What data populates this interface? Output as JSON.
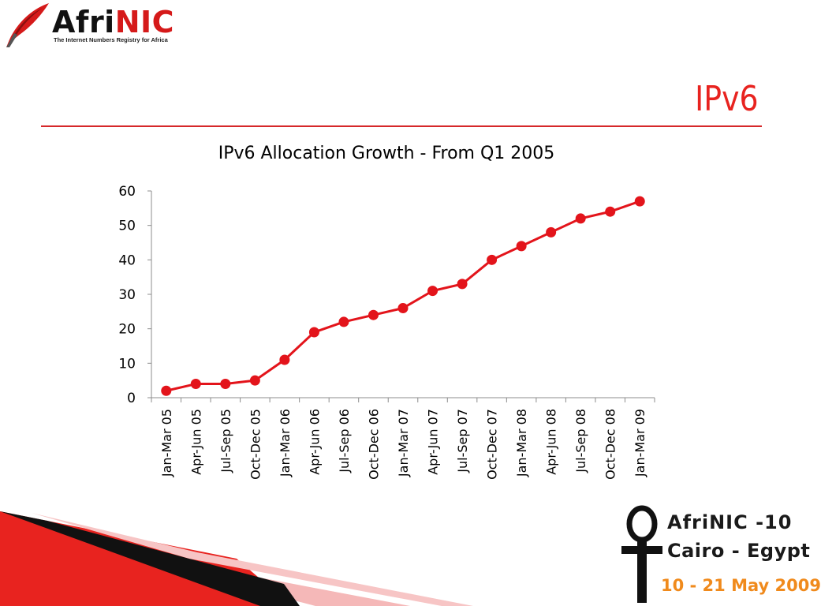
{
  "logo": {
    "name_part1": "Afri",
    "name_part2": "NIC",
    "tagline": "The Internet Numbers Registry for Africa"
  },
  "slide_title": "IPv6",
  "chart_data": {
    "type": "line",
    "title": "IPv6 Allocation Growth - From Q1 2005",
    "xlabel": "",
    "ylabel": "",
    "ylim": [
      0,
      60
    ],
    "yticks": [
      0,
      10,
      20,
      30,
      40,
      50,
      60
    ],
    "grid": false,
    "legend": "none",
    "categories": [
      "Jan-Mar 05",
      "Apr-Jun 05",
      "Jul-Sep 05",
      "Oct-Dec 05",
      "Jan-Mar 06",
      "Apr-Jun 06",
      "Jul-Sep 06",
      "Oct-Dec 06",
      "Jan-Mar 07",
      "Apr-Jun 07",
      "Jul-Sep 07",
      "Oct-Dec 07",
      "Jan-Mar 08",
      "Apr-Jun 08",
      "Jul-Sep 08",
      "Oct-Dec 08",
      "Jan-Mar 09"
    ],
    "series": [
      {
        "values": [
          2,
          4,
          4,
          5,
          11,
          19,
          22,
          24,
          26,
          31,
          33,
          40,
          44,
          48,
          52,
          54,
          57
        ],
        "color": "#e3141b"
      }
    ]
  },
  "event": {
    "line1": "AfriNIC -10",
    "line2": "Cairo - Egypt",
    "dates": "10 - 21 May 2009"
  },
  "colors": {
    "accent_red": "#e8231f",
    "series_red": "#e3141b",
    "event_orange": "#f08a1c"
  }
}
